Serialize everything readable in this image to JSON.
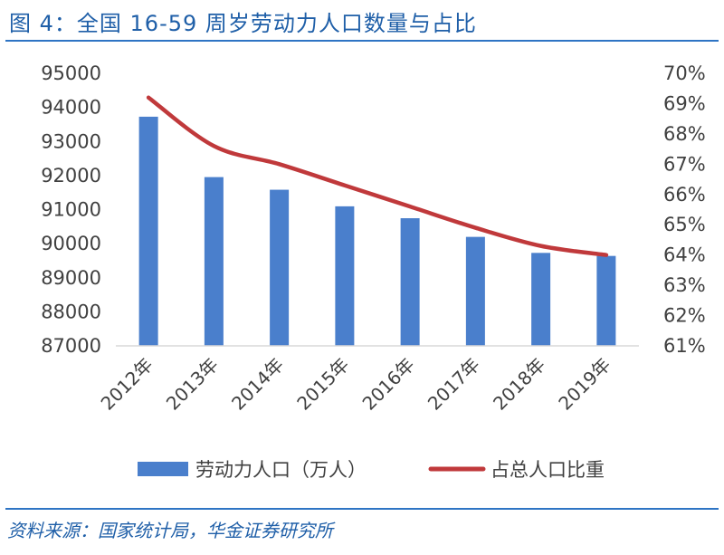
{
  "figure": {
    "title": "图 4：全国 16-59 周岁劳动力人口数量与占比",
    "source": "资料来源：国家统计局，华金证券研究所"
  },
  "colors": {
    "bar": "#4a7fcc",
    "line": "#c0393b",
    "title": "#1f5fa8",
    "rule": "#2e74c4"
  },
  "chart_data": {
    "type": "bar",
    "categories": [
      "2012年",
      "2013年",
      "2014年",
      "2015年",
      "2016年",
      "2017年",
      "2018年",
      "2019年"
    ],
    "series": [
      {
        "name": "劳动力人口（万人）",
        "type": "bar",
        "axis": "left",
        "values": [
          93727,
          91954,
          91583,
          91096,
          90747,
          90199,
          89729,
          89640
        ]
      },
      {
        "name": "占总人口比重",
        "type": "line",
        "axis": "right",
        "values": [
          69.2,
          67.6,
          67.0,
          66.3,
          65.6,
          64.9,
          64.3,
          64.0
        ]
      }
    ],
    "ylim": [
      87000,
      95000
    ],
    "yticks": [
      "87000",
      "88000",
      "89000",
      "90000",
      "91000",
      "92000",
      "93000",
      "94000",
      "95000"
    ],
    "y2lim": [
      61,
      70
    ],
    "y2ticks": [
      "61%",
      "62%",
      "63%",
      "64%",
      "65%",
      "66%",
      "67%",
      "68%",
      "69%",
      "70%"
    ],
    "grid": false,
    "legend_position": "bottom"
  }
}
